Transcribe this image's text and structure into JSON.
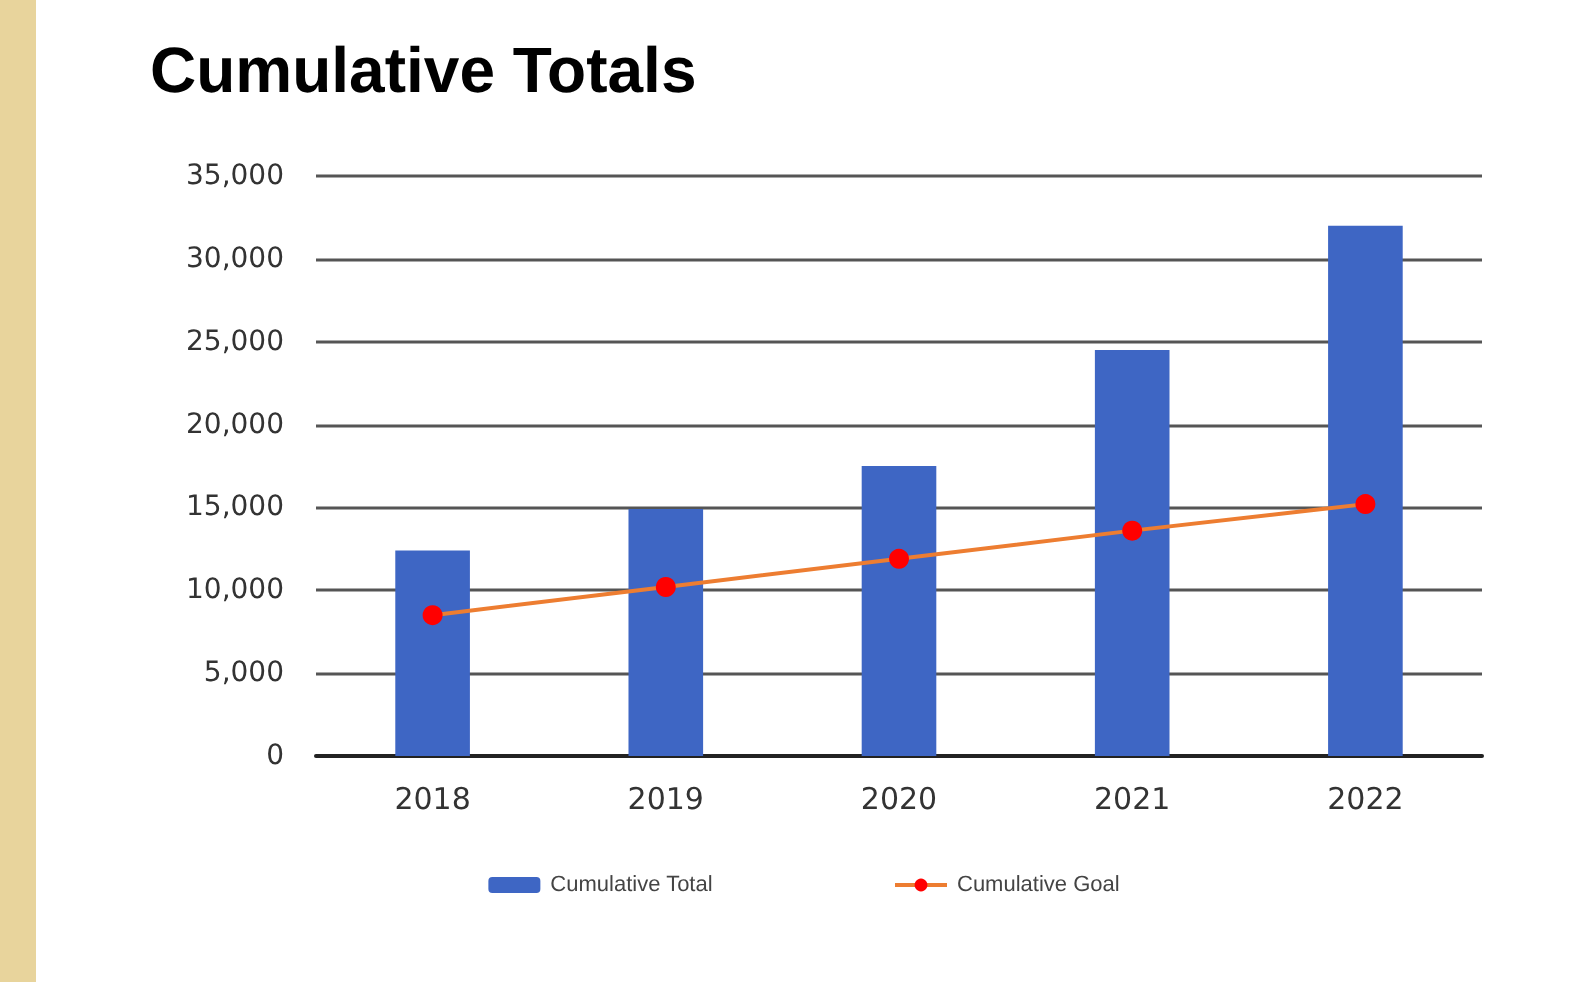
{
  "chart_data": {
    "type": "bar",
    "title": "Cumulative Totals",
    "categories": [
      "2018",
      "2019",
      "2020",
      "2021",
      "2022"
    ],
    "series": [
      {
        "name": "Cumulative Total",
        "color": "#3e66c4",
        "values": [
          12400,
          14900,
          17500,
          24500,
          32000
        ]
      },
      {
        "name": "Cumulative Goal",
        "type": "line",
        "color": "#ed7d31",
        "marker": "circle",
        "values": [
          8500,
          10200,
          11900,
          13600,
          15200
        ]
      }
    ],
    "ylim": [
      0,
      35000
    ],
    "yticks": [
      0,
      {
        "value": 5000,
        "label": "5,000"
      },
      {
        "value": 10000,
        "label": "10,000"
      },
      {
        "value": 15000,
        "label": "15,000"
      },
      {
        "value": 20000,
        "label": "20,000"
      },
      {
        "value": 25000,
        "label": "25,000"
      },
      {
        "value": 30000,
        "label": "30,000"
      },
      {
        "value": 35000,
        "label": "35,000"
      }
    ],
    "grid": "y",
    "legend": "bottom"
  }
}
